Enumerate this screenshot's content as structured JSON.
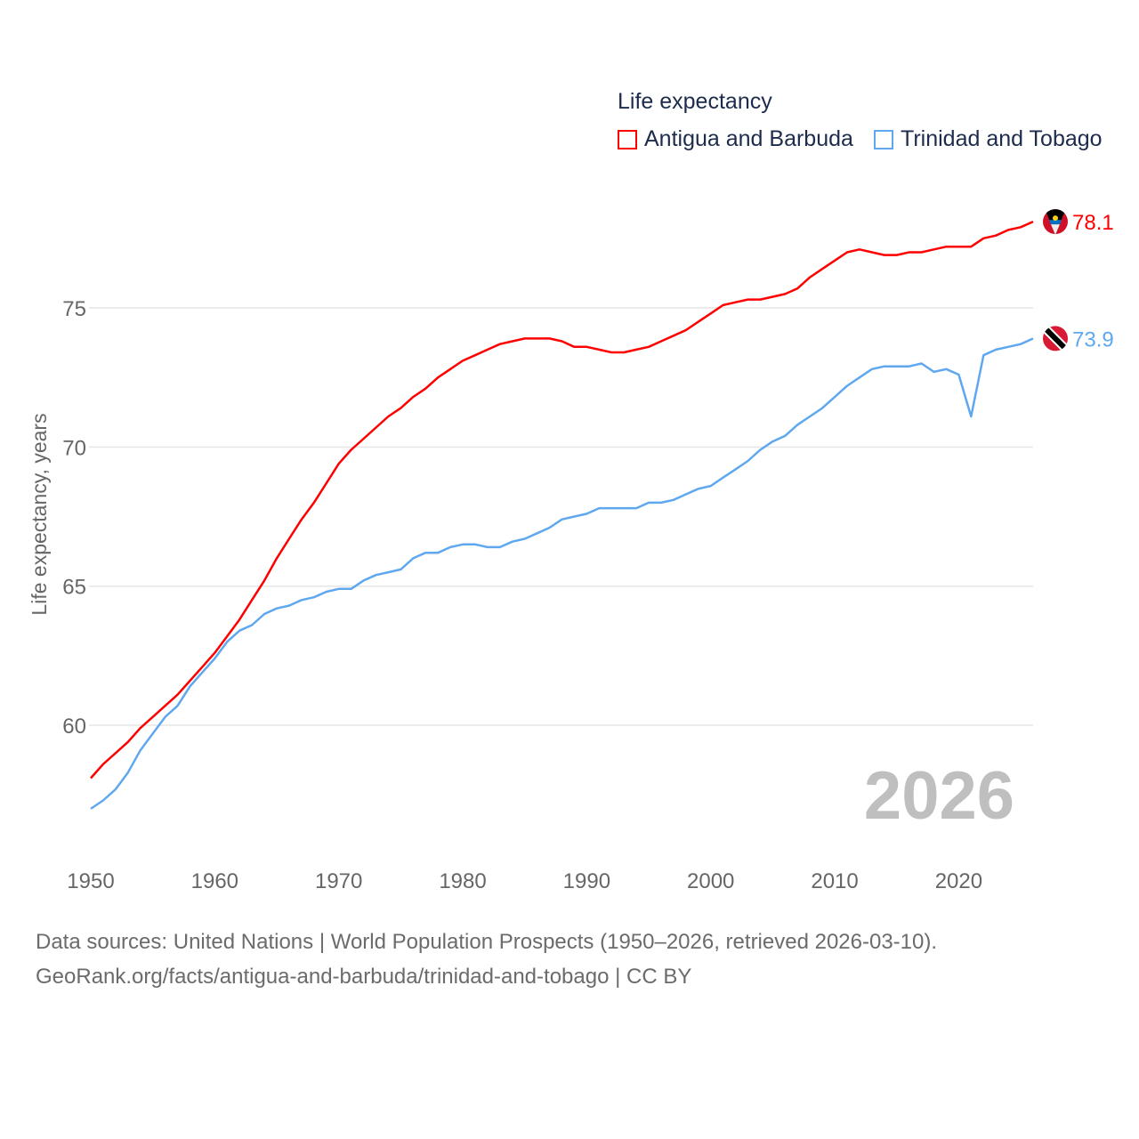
{
  "chart_data": {
    "type": "line",
    "title": "Life expectancy",
    "xlabel": "",
    "ylabel": "Life expectancy, years",
    "xlim": [
      1950,
      2026
    ],
    "ylim": [
      56.2,
      79.9
    ],
    "x_ticks": [
      "1950",
      "1960",
      "1970",
      "1980",
      "1990",
      "2000",
      "2010",
      "2020"
    ],
    "y_ticks": [
      "60",
      "65",
      "70",
      "75"
    ],
    "grid": true,
    "legend_position": "top-right",
    "year_label": "2026",
    "x": [
      1950,
      1951,
      1952,
      1953,
      1954,
      1955,
      1956,
      1957,
      1958,
      1959,
      1960,
      1961,
      1962,
      1963,
      1964,
      1965,
      1966,
      1967,
      1968,
      1969,
      1970,
      1971,
      1972,
      1973,
      1974,
      1975,
      1976,
      1977,
      1978,
      1979,
      1980,
      1981,
      1982,
      1983,
      1984,
      1985,
      1986,
      1987,
      1988,
      1989,
      1990,
      1991,
      1992,
      1993,
      1994,
      1995,
      1996,
      1997,
      1998,
      1999,
      2000,
      2001,
      2002,
      2003,
      2004,
      2005,
      2006,
      2007,
      2008,
      2009,
      2010,
      2011,
      2012,
      2013,
      2014,
      2015,
      2016,
      2017,
      2018,
      2019,
      2020,
      2021,
      2022,
      2023,
      2024,
      2025,
      2026
    ],
    "series": [
      {
        "name": "Antigua and Barbuda",
        "color": "#ff0000",
        "end_label": "78.1",
        "values": [
          58.1,
          58.6,
          59.0,
          59.4,
          59.9,
          60.3,
          60.7,
          61.1,
          61.6,
          62.1,
          62.6,
          63.2,
          63.8,
          64.5,
          65.2,
          66.0,
          66.7,
          67.4,
          68.0,
          68.7,
          69.4,
          69.9,
          70.3,
          70.7,
          71.1,
          71.4,
          71.8,
          72.1,
          72.5,
          72.8,
          73.1,
          73.3,
          73.5,
          73.7,
          73.8,
          73.9,
          73.9,
          73.9,
          73.8,
          73.6,
          73.6,
          73.5,
          73.4,
          73.4,
          73.5,
          73.6,
          73.8,
          74.0,
          74.2,
          74.5,
          74.8,
          75.1,
          75.2,
          75.3,
          75.3,
          75.4,
          75.5,
          75.7,
          76.1,
          76.4,
          76.7,
          77.0,
          77.1,
          77.0,
          76.9,
          76.9,
          77.0,
          77.0,
          77.1,
          77.2,
          77.2,
          77.2,
          77.5,
          77.6,
          77.8,
          77.9,
          78.1
        ]
      },
      {
        "name": "Trinidad and Tobago",
        "color": "#5fa8f0",
        "end_label": "73.9",
        "values": [
          57.0,
          57.3,
          57.7,
          58.3,
          59.1,
          59.7,
          60.3,
          60.7,
          61.4,
          61.9,
          62.4,
          63.0,
          63.4,
          63.6,
          64.0,
          64.2,
          64.3,
          64.5,
          64.6,
          64.8,
          64.9,
          64.9,
          65.2,
          65.4,
          65.5,
          65.6,
          66.0,
          66.2,
          66.2,
          66.4,
          66.5,
          66.5,
          66.4,
          66.4,
          66.6,
          66.7,
          66.9,
          67.1,
          67.4,
          67.5,
          67.6,
          67.8,
          67.8,
          67.8,
          67.8,
          68.0,
          68.0,
          68.1,
          68.3,
          68.5,
          68.6,
          68.9,
          69.2,
          69.5,
          69.9,
          70.2,
          70.4,
          70.8,
          71.1,
          71.4,
          71.8,
          72.2,
          72.5,
          72.8,
          72.9,
          72.9,
          72.9,
          73.0,
          72.7,
          72.8,
          72.6,
          71.1,
          73.3,
          73.5,
          73.6,
          73.7,
          73.9
        ]
      }
    ]
  },
  "legend": {
    "title": "Life expectancy",
    "items": [
      "Antigua and Barbuda",
      "Trinidad and Tobago"
    ]
  },
  "footer": {
    "line1": "Data sources: United Nations | World Population Prospects (1950–2026, retrieved 2026-03-10).",
    "line2": "GeoRank.org/facts/antigua-and-barbuda/trinidad-and-tobago | CC BY"
  }
}
